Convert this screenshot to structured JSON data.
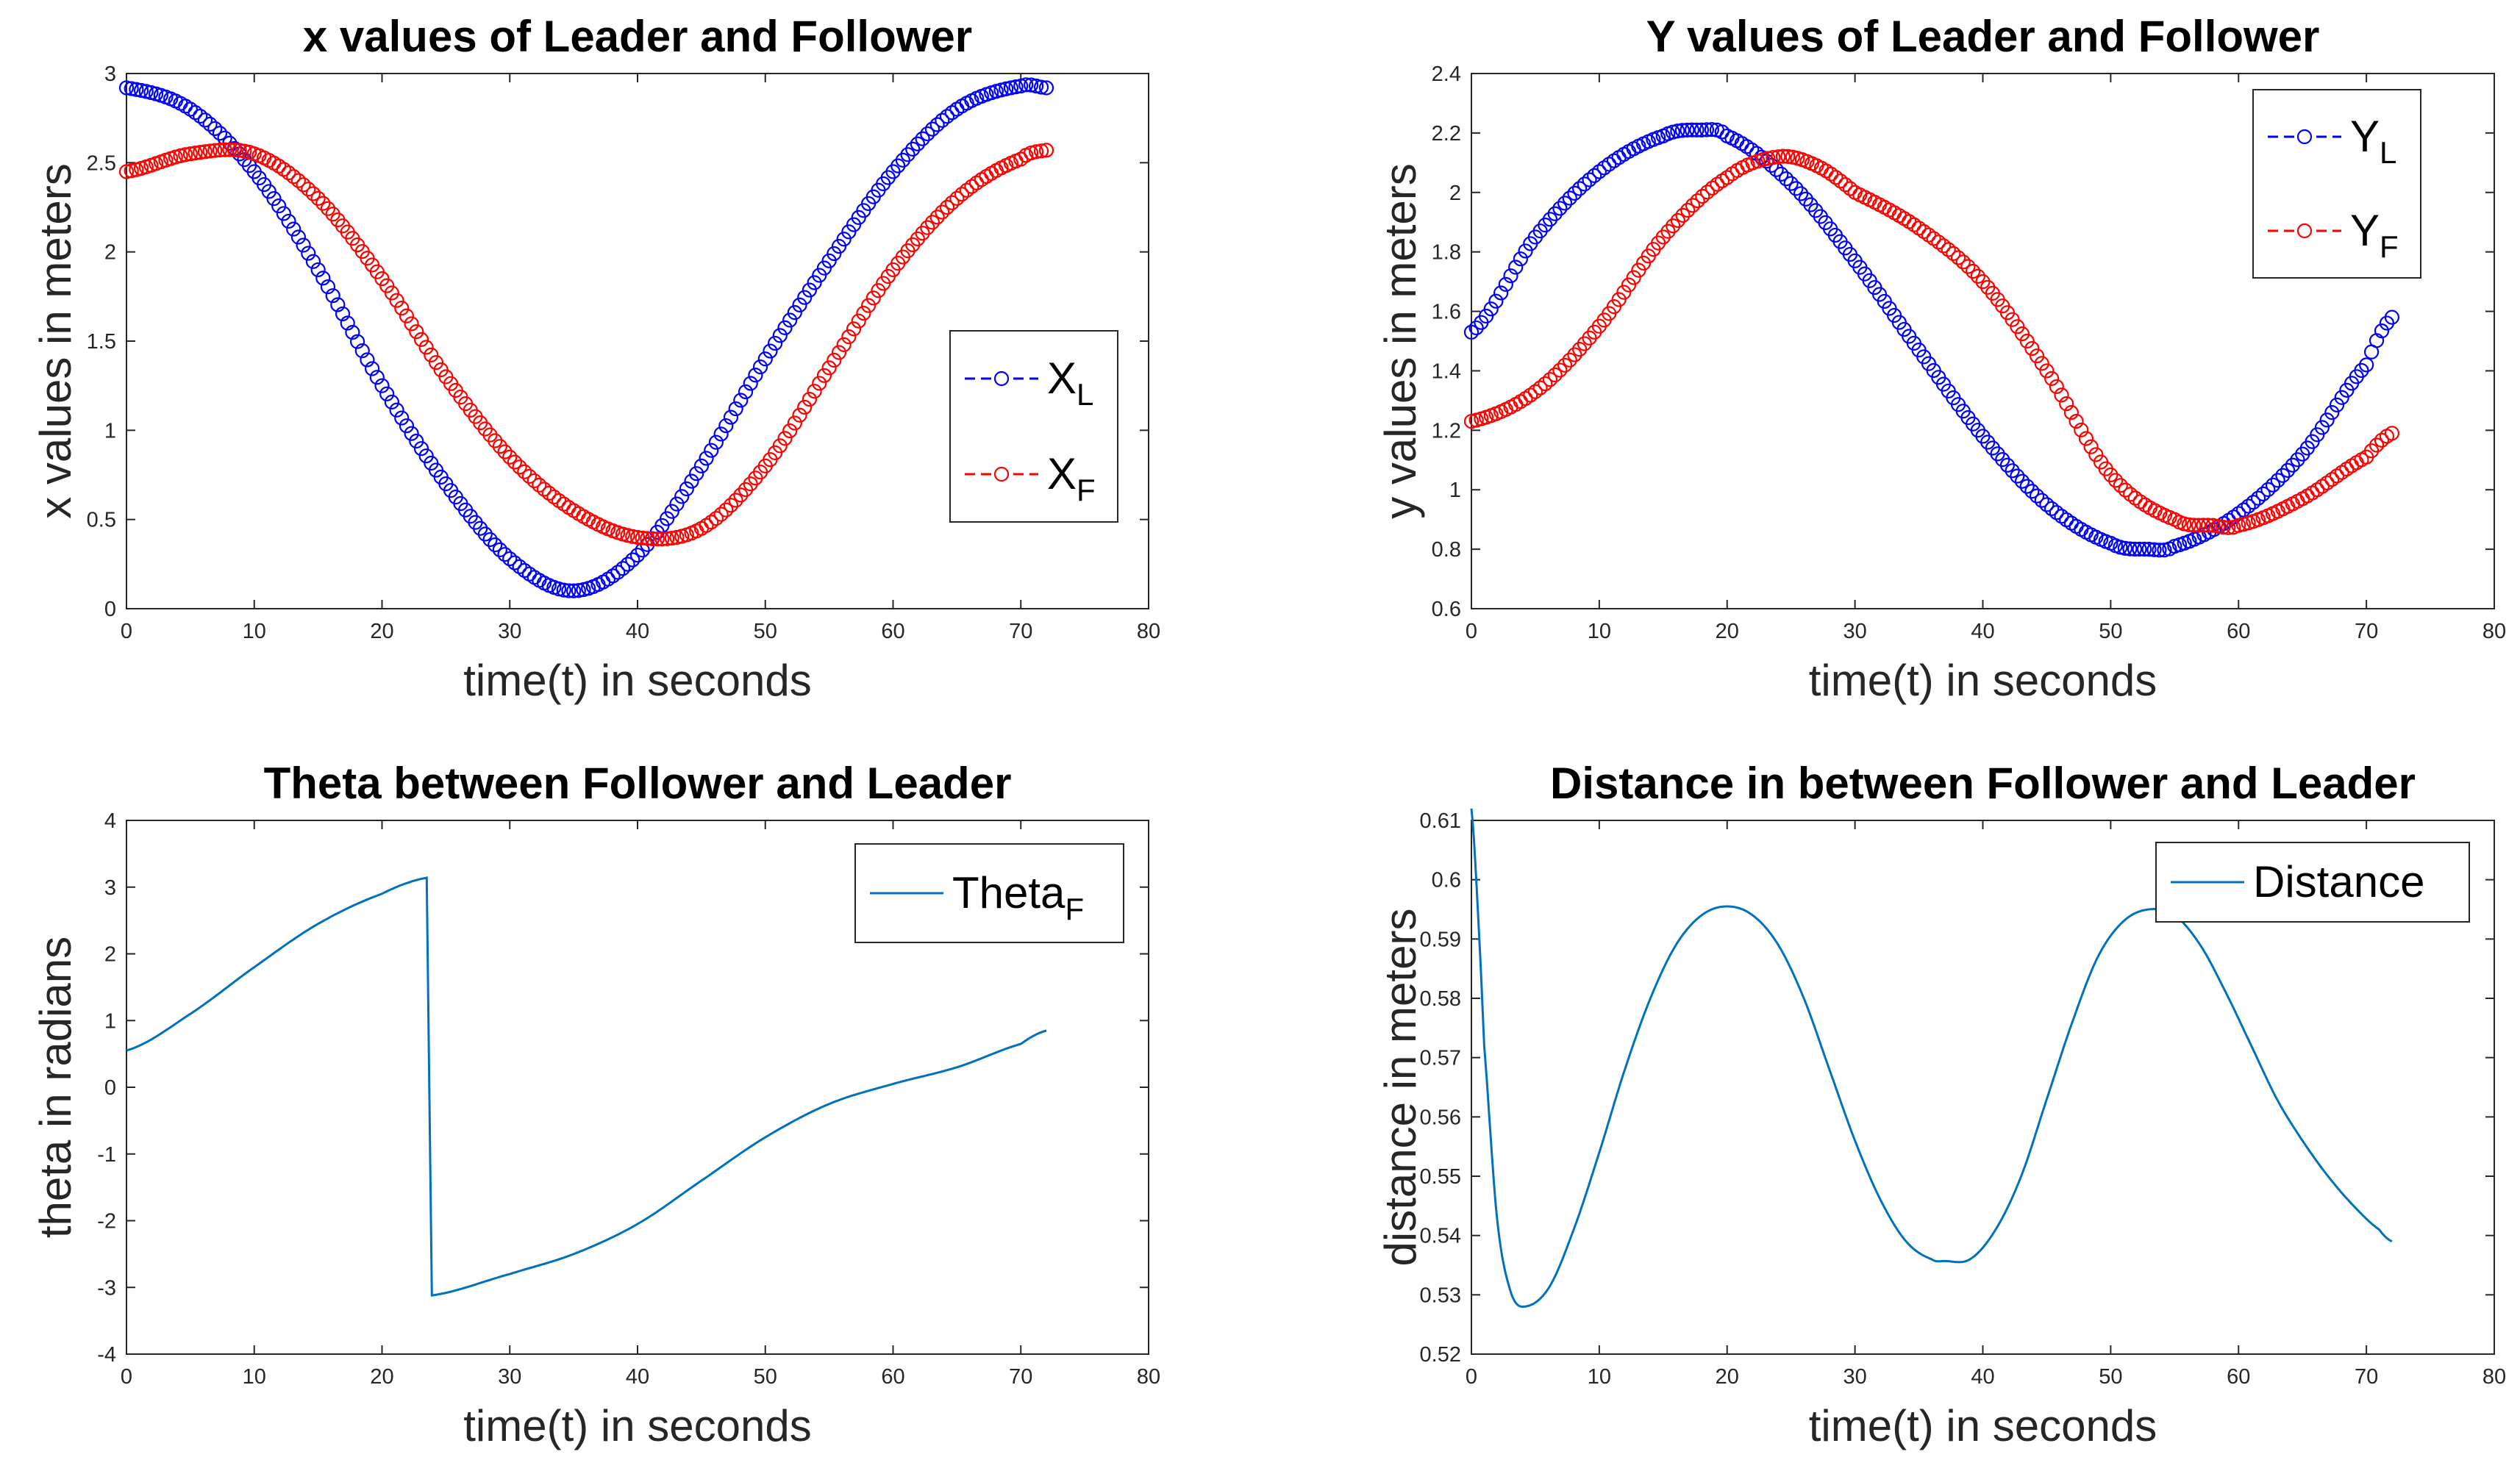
{
  "chart_data": [
    {
      "type": "scatter",
      "title": "x values of Leader and Follower",
      "xlabel": "time(t) in seconds",
      "ylabel": "x values in meters",
      "xlim": [
        0,
        80
      ],
      "ylim": [
        0,
        3
      ],
      "xticks": [
        0,
        10,
        20,
        30,
        40,
        50,
        60,
        70,
        80
      ],
      "yticks": [
        0,
        0.5,
        1,
        1.5,
        2,
        2.5,
        3
      ],
      "legend": "right",
      "series": [
        {
          "name": "X",
          "sub": "L",
          "color": "#0000ff",
          "style": "dashed-circle",
          "x": [
            0,
            5,
            10,
            15,
            20,
            25,
            30,
            35,
            40,
            45,
            50,
            55,
            60,
            65,
            70,
            72
          ],
          "y": [
            2.92,
            2.8,
            2.45,
            1.9,
            1.25,
            0.7,
            0.28,
            0.1,
            0.3,
            0.8,
            1.4,
            1.95,
            2.45,
            2.8,
            2.93,
            2.92
          ]
        },
        {
          "name": "X",
          "sub": "F",
          "color": "#ff0000",
          "style": "dashed-circle",
          "x": [
            0,
            5,
            10,
            15,
            20,
            25,
            30,
            35,
            40,
            45,
            50,
            55,
            60,
            65,
            70,
            72
          ],
          "y": [
            2.45,
            2.55,
            2.55,
            2.3,
            1.85,
            1.3,
            0.85,
            0.55,
            0.4,
            0.45,
            0.8,
            1.35,
            1.9,
            2.3,
            2.52,
            2.57
          ]
        }
      ]
    },
    {
      "type": "scatter",
      "title": "Y values of Leader and Follower",
      "xlabel": "time(t) in seconds",
      "ylabel": "y values in meters",
      "xlim": [
        0,
        80
      ],
      "ylim": [
        0.6,
        2.4
      ],
      "xticks": [
        0,
        10,
        20,
        30,
        40,
        50,
        60,
        70,
        80
      ],
      "yticks": [
        0.6,
        0.8,
        1,
        1.2,
        1.4,
        1.6,
        1.8,
        2,
        2.2,
        2.4
      ],
      "legend": "top-right",
      "series": [
        {
          "name": "Y",
          "sub": "L",
          "color": "#0000ff",
          "style": "dashed-circle",
          "x": [
            0,
            5,
            10,
            15,
            18,
            20,
            25,
            30,
            35,
            40,
            45,
            50,
            53,
            55,
            60,
            65,
            70,
            72
          ],
          "y": [
            1.53,
            1.85,
            2.07,
            2.19,
            2.21,
            2.19,
            2.03,
            1.77,
            1.47,
            1.18,
            0.95,
            0.82,
            0.8,
            0.81,
            0.92,
            1.12,
            1.42,
            1.58
          ]
        },
        {
          "name": "Y",
          "sub": "F",
          "color": "#ff0000",
          "style": "dashed-circle",
          "x": [
            0,
            5,
            10,
            15,
            20,
            24,
            27,
            30,
            35,
            40,
            45,
            50,
            55,
            58,
            60,
            65,
            70,
            72
          ],
          "y": [
            1.23,
            1.33,
            1.55,
            1.85,
            2.05,
            2.12,
            2.09,
            2.0,
            1.88,
            1.7,
            1.4,
            1.05,
            0.9,
            0.88,
            0.88,
            0.97,
            1.11,
            1.19
          ]
        }
      ]
    },
    {
      "type": "line",
      "title": "Theta between Follower and Leader",
      "xlabel": "time(t) in seconds",
      "ylabel": "theta in radians",
      "xlim": [
        0,
        80
      ],
      "ylim": [
        -4,
        4
      ],
      "xticks": [
        0,
        10,
        20,
        30,
        40,
        50,
        60,
        70,
        80
      ],
      "yticks": [
        -4,
        -3,
        -2,
        -1,
        0,
        1,
        2,
        3,
        4
      ],
      "legend": "top-right",
      "series": [
        {
          "name": "Theta",
          "sub": "F",
          "color": "#0072bd",
          "x": [
            0,
            5,
            10,
            15,
            20,
            23.5,
            23.9,
            30,
            35,
            40,
            45,
            50,
            55,
            60,
            65,
            70,
            72
          ],
          "y": [
            0.55,
            1.1,
            1.8,
            2.45,
            2.9,
            3.14,
            -3.12,
            -2.8,
            -2.5,
            -2.05,
            -1.4,
            -0.75,
            -0.25,
            0.05,
            0.3,
            0.65,
            0.85
          ]
        }
      ]
    },
    {
      "type": "line",
      "title": "Distance in between Follower and Leader",
      "xlabel": "time(t) in seconds",
      "ylabel": "distance in meters",
      "xlim": [
        0,
        80
      ],
      "ylim": [
        0.52,
        0.61
      ],
      "xticks": [
        0,
        10,
        20,
        30,
        40,
        50,
        60,
        70,
        80
      ],
      "yticks": [
        0.52,
        0.53,
        0.54,
        0.55,
        0.56,
        0.57,
        0.58,
        0.59,
        0.6,
        0.61
      ],
      "legend": "top-right",
      "series": [
        {
          "name": "Distance",
          "sub": "",
          "color": "#0072bd",
          "x": [
            0,
            0.5,
            1,
            2,
            3,
            4,
            6,
            8,
            10,
            12,
            14,
            16,
            18,
            20,
            22,
            24,
            26,
            28,
            30,
            32,
            34,
            36,
            37,
            39,
            41,
            43,
            45,
            47,
            49,
            51,
            53,
            55,
            57,
            59,
            61,
            63,
            65,
            67,
            69,
            71,
            72
          ],
          "y": [
            0.612,
            0.595,
            0.572,
            0.543,
            0.531,
            0.528,
            0.531,
            0.541,
            0.554,
            0.568,
            0.58,
            0.589,
            0.594,
            0.5955,
            0.594,
            0.589,
            0.58,
            0.568,
            0.556,
            0.546,
            0.539,
            0.536,
            0.5357,
            0.536,
            0.541,
            0.55,
            0.563,
            0.576,
            0.587,
            0.593,
            0.595,
            0.594,
            0.589,
            0.581,
            0.572,
            0.563,
            0.556,
            0.55,
            0.545,
            0.541,
            0.539
          ]
        }
      ]
    }
  ]
}
